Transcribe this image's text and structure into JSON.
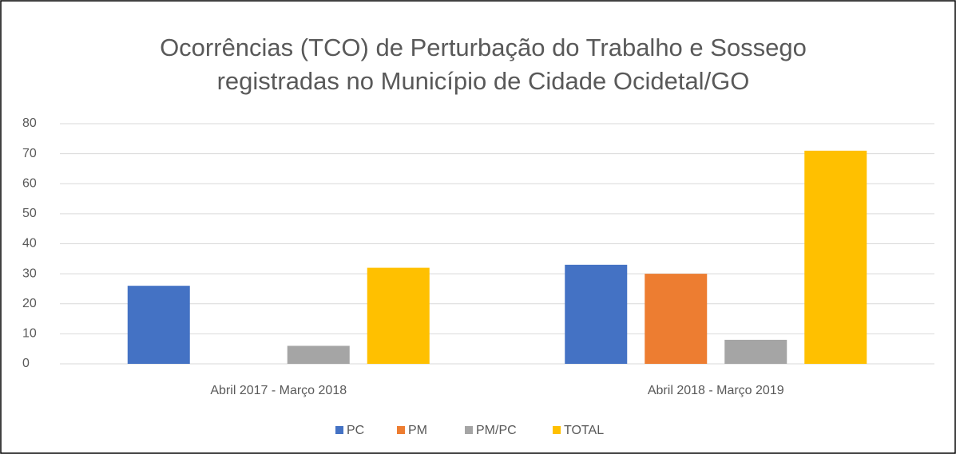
{
  "chart_data": {
    "type": "bar",
    "title": [
      "Ocorrências (TCO) de Perturbação do Trabalho e Sossego",
      "registradas no Município de Cidade Ocidetal/GO"
    ],
    "categories": [
      "Abril 2017 - Março 2018",
      "Abril 2018 - Março 2019"
    ],
    "series": [
      {
        "name": "PC",
        "color": "#4472c4",
        "values": [
          26,
          33
        ]
      },
      {
        "name": "PM",
        "color": "#ed7d31",
        "values": [
          0,
          30
        ]
      },
      {
        "name": "PM/PC",
        "color": "#a5a5a5",
        "values": [
          6,
          8
        ]
      },
      {
        "name": "TOTAL",
        "color": "#ffc000",
        "values": [
          32,
          71
        ]
      }
    ],
    "ylim": [
      0,
      80
    ],
    "yticks": [
      0,
      10,
      20,
      30,
      40,
      50,
      60,
      70,
      80
    ],
    "grid": true,
    "legend": "bottom"
  }
}
